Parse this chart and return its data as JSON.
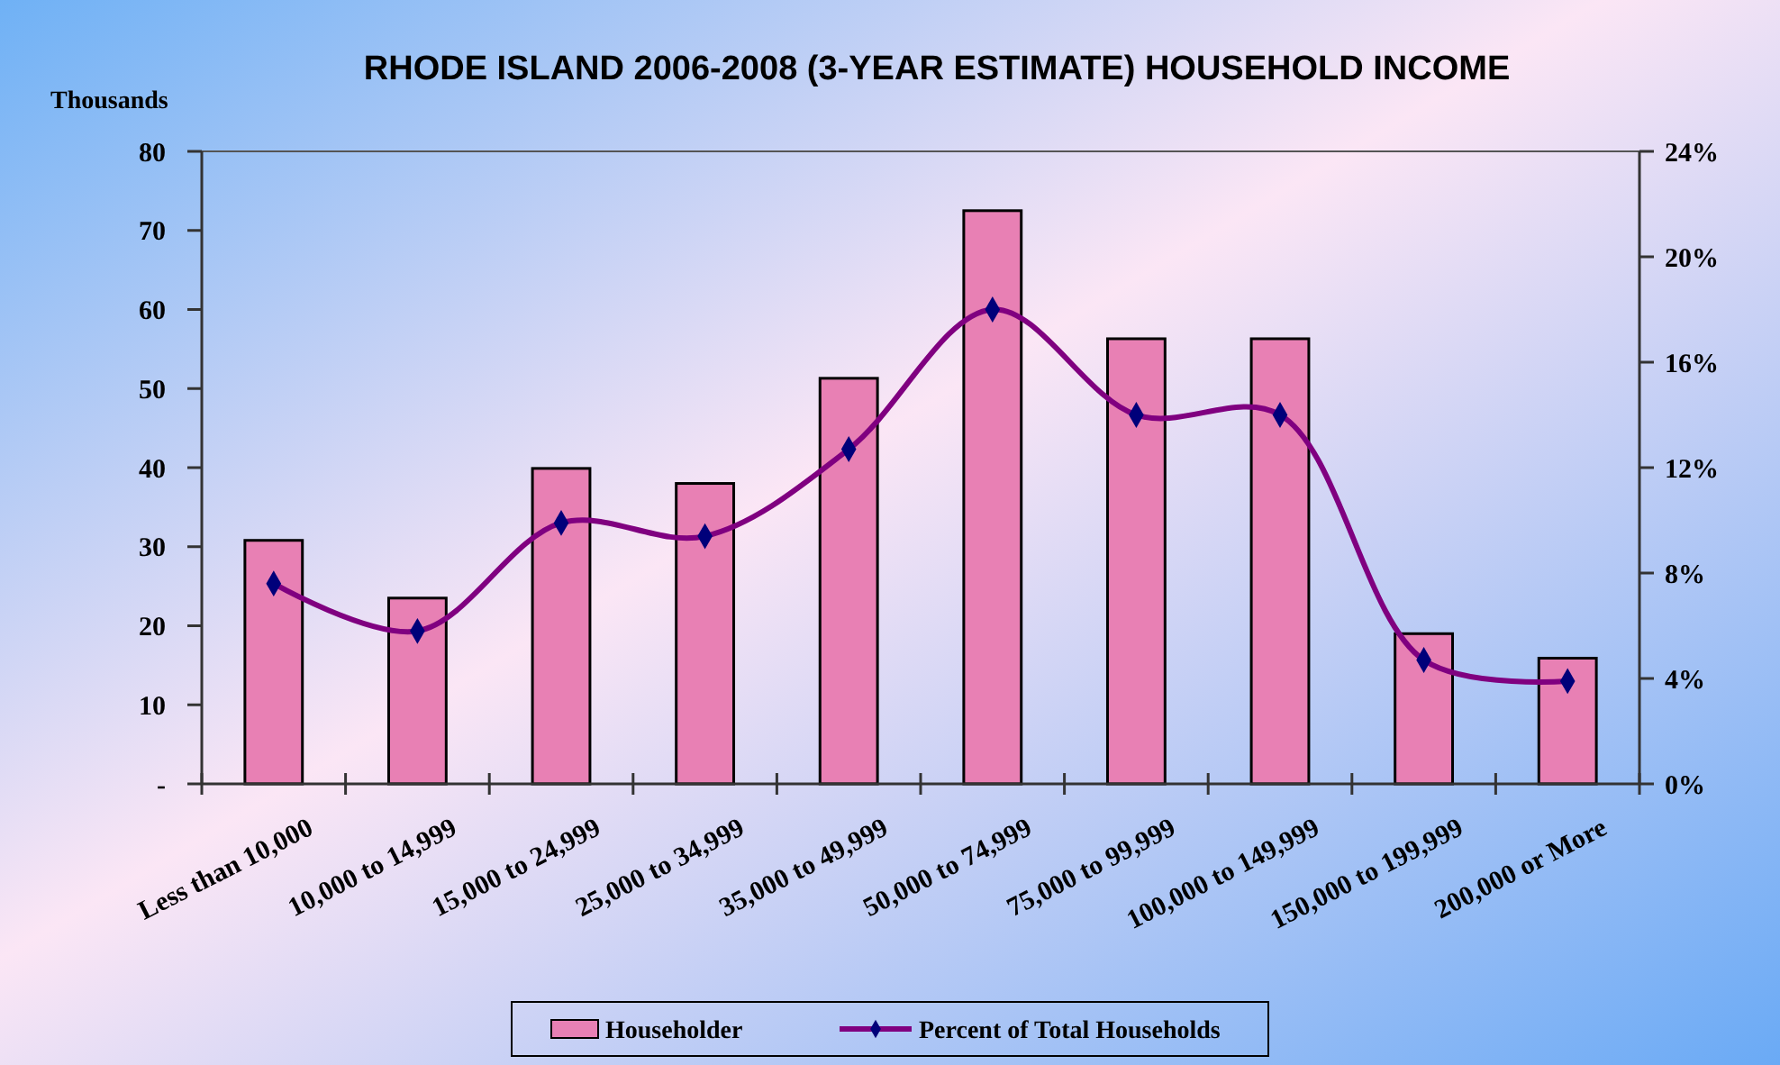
{
  "chart_data": {
    "type": "bar",
    "title": "RHODE ISLAND 2006-2008 (3-YEAR ESTIMATE) HOUSEHOLD INCOME",
    "ylabel": "Thousands",
    "categories": [
      "Less than 10,000",
      "10,000 to 14,999",
      "15,000 to 24,999",
      "25,000 to 34,999",
      "35,000 to 49,999",
      "50,000 to 74,999",
      "75,000 to 99,999",
      "100,000 to 149,999",
      "150,000 to 199,999",
      "200,000 or More"
    ],
    "series": [
      {
        "name": "Householder",
        "color": "#e880b4",
        "values": [
          30.8,
          23.5,
          39.9,
          38.0,
          51.3,
          72.5,
          56.3,
          56.3,
          19.0,
          15.9
        ]
      },
      {
        "name": "Percent of Total Households",
        "type": "line",
        "axis": "y2",
        "color": "#800080",
        "marker": "diamond",
        "values": [
          7.6,
          5.8,
          9.9,
          9.4,
          12.7,
          18.0,
          14.0,
          14.0,
          4.7,
          3.9
        ]
      }
    ],
    "ylim": [
      0,
      80
    ],
    "yticks": [
      {
        "value": 0,
        "label": "-"
      },
      10,
      20,
      30,
      40,
      50,
      60,
      70,
      80
    ],
    "y2lim": [
      0,
      24
    ],
    "y2ticks": [
      {
        "value": 0,
        "label": "0%"
      },
      {
        "value": 4,
        "label": "4%"
      },
      {
        "value": 8,
        "label": "8%"
      },
      {
        "value": 12,
        "label": "12%"
      },
      {
        "value": 16,
        "label": "16%"
      },
      {
        "value": 20,
        "label": "20%"
      },
      {
        "value": 24,
        "label": "24%"
      }
    ],
    "grid": false,
    "legend": "bottom"
  }
}
